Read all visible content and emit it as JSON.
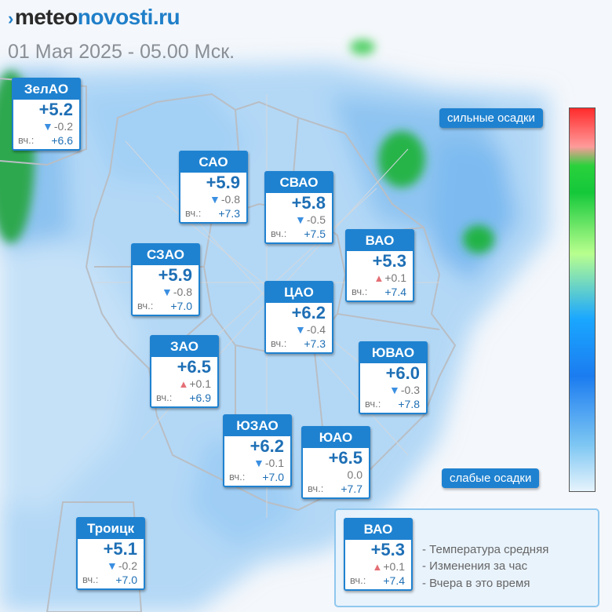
{
  "brand": {
    "prefix": "meteo",
    "suffix": "novosti.ru",
    "mark": "›"
  },
  "subtitle": "01 Мая 2025 - 05.00 Мск.",
  "scale": {
    "top_label": "сильные осадки",
    "bottom_label": "слабые осадки"
  },
  "districts": [
    {
      "name": "ЗелАО",
      "temp": "+5.2",
      "dir": "down",
      "change": "-0.2",
      "yest_label": "вч.:",
      "yest": "+6.6"
    },
    {
      "name": "САО",
      "temp": "+5.9",
      "dir": "down",
      "change": "-0.8",
      "yest_label": "вч.:",
      "yest": "+7.3"
    },
    {
      "name": "СВАО",
      "temp": "+5.8",
      "dir": "down",
      "change": "-0.5",
      "yest_label": "вч.:",
      "yest": "+7.5"
    },
    {
      "name": "ВАО",
      "temp": "+5.3",
      "dir": "up",
      "change": "+0.1",
      "yest_label": "вч.:",
      "yest": "+7.4"
    },
    {
      "name": "СЗАО",
      "temp": "+5.9",
      "dir": "down",
      "change": "-0.8",
      "yest_label": "вч.:",
      "yest": "+7.0"
    },
    {
      "name": "ЦАО",
      "temp": "+6.2",
      "dir": "down",
      "change": "-0.4",
      "yest_label": "вч.:",
      "yest": "+7.3"
    },
    {
      "name": "ЗАО",
      "temp": "+6.5",
      "dir": "up",
      "change": "+0.1",
      "yest_label": "вч.:",
      "yest": "+6.9"
    },
    {
      "name": "ЮВАО",
      "temp": "+6.0",
      "dir": "down",
      "change": "-0.3",
      "yest_label": "вч.:",
      "yest": "+7.8"
    },
    {
      "name": "ЮЗАО",
      "temp": "+6.2",
      "dir": "down",
      "change": "-0.1",
      "yest_label": "вч.:",
      "yest": "+7.0"
    },
    {
      "name": "ЮАО",
      "temp": "+6.5",
      "dir": "none",
      "change": "0.0",
      "yest_label": "вч.:",
      "yest": "+7.7"
    },
    {
      "name": "Троицк",
      "temp": "+5.1",
      "dir": "down",
      "change": "-0.2",
      "yest_label": "вч.:",
      "yest": "+7.0"
    }
  ],
  "legend": {
    "sample": {
      "name": "ВАО",
      "temp": "+5.3",
      "dir": "up",
      "change": "+0.1",
      "yest_label": "вч.:",
      "yest": "+7.4"
    },
    "lines": [
      "- Температура средняя",
      "- Изменения за час",
      "- Вчера в это время"
    ]
  },
  "colors": {
    "accent": "#1f82d0",
    "temp_text": "#1e6fb5",
    "rain_light": "#b9dcf7",
    "rain_heavy": "#1fae4a",
    "rise": "#e46f75",
    "fall": "#3b8fe0"
  }
}
